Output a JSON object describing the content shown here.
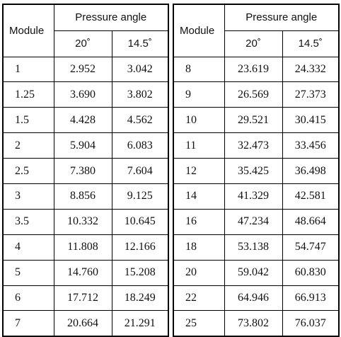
{
  "header": {
    "module": "Module",
    "pressure_angle": "Pressure angle",
    "angle_a": "20˚",
    "angle_b": "14.5˚"
  },
  "left_rows": [
    {
      "module": "1",
      "a": "2.952",
      "b": "3.042"
    },
    {
      "module": "1.25",
      "a": "3.690",
      "b": "3.802"
    },
    {
      "module": "1.5",
      "a": "4.428",
      "b": "4.562"
    },
    {
      "module": "2",
      "a": "5.904",
      "b": "6.083"
    },
    {
      "module": "2.5",
      "a": "7.380",
      "b": "7.604"
    },
    {
      "module": "3",
      "a": "8.856",
      "b": "9.125"
    },
    {
      "module": "3.5",
      "a": "10.332",
      "b": "10.645"
    },
    {
      "module": "4",
      "a": "11.808",
      "b": "12.166"
    },
    {
      "module": "5",
      "a": "14.760",
      "b": "15.208"
    },
    {
      "module": "6",
      "a": "17.712",
      "b": "18.249"
    },
    {
      "module": "7",
      "a": "20.664",
      "b": "21.291"
    }
  ],
  "right_rows": [
    {
      "module": "8",
      "a": "23.619",
      "b": "24.332"
    },
    {
      "module": "9",
      "a": "26.569",
      "b": "27.373"
    },
    {
      "module": "10",
      "a": "29.521",
      "b": "30.415"
    },
    {
      "module": "11",
      "a": "32.473",
      "b": "33.456"
    },
    {
      "module": "12",
      "a": "35.425",
      "b": "36.498"
    },
    {
      "module": "14",
      "a": "41.329",
      "b": "42.581"
    },
    {
      "module": "16",
      "a": "47.234",
      "b": "48.664"
    },
    {
      "module": "18",
      "a": "53.138",
      "b": "54.747"
    },
    {
      "module": "20",
      "a": "59.042",
      "b": "60.830"
    },
    {
      "module": "22",
      "a": "64.946",
      "b": "66.913"
    },
    {
      "module": "25",
      "a": "73.802",
      "b": "76.037"
    }
  ]
}
